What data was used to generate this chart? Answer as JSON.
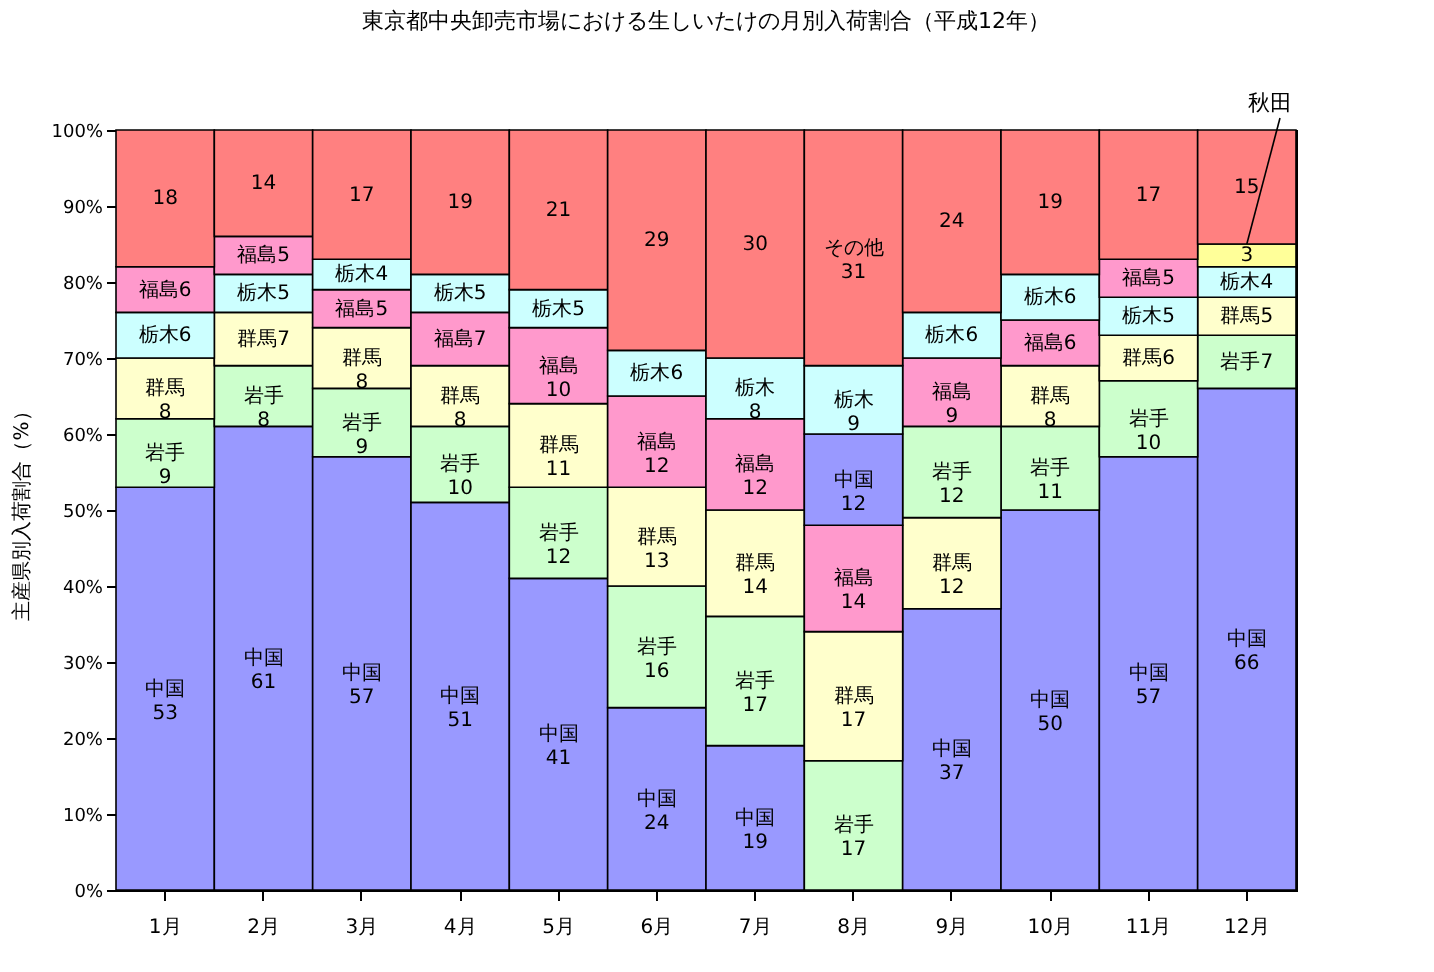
{
  "chart_data": {
    "type": "bar",
    "stacked": true,
    "title": "東京都中央卸売市場における生しいたけの月別入荷割合（平成12年）",
    "ylabel": "主産県別入荷割合（%）",
    "categories": [
      "1月",
      "2月",
      "3月",
      "4月",
      "5月",
      "6月",
      "7月",
      "8月",
      "9月",
      "10月",
      "11月",
      "12月"
    ],
    "ylim": [
      0,
      100
    ],
    "yticks": [
      {
        "value": 0,
        "label": "0%"
      },
      {
        "value": 10,
        "label": "10%"
      },
      {
        "value": 20,
        "label": "20%"
      },
      {
        "value": 30,
        "label": "30%"
      },
      {
        "value": 40,
        "label": "40%"
      },
      {
        "value": 50,
        "label": "50%"
      },
      {
        "value": 60,
        "label": "60%"
      },
      {
        "value": 70,
        "label": "70%"
      },
      {
        "value": 80,
        "label": "80%"
      },
      {
        "value": 90,
        "label": "90%"
      },
      {
        "value": 100,
        "label": "100%"
      }
    ],
    "series": [
      {
        "values": [
          53,
          61,
          57,
          51,
          41,
          24,
          19,
          17,
          37,
          50,
          57,
          66
        ],
        "colors": [
          "#9999ff",
          "#9999ff",
          "#9999ff",
          "#9999ff",
          "#9999ff",
          "#9999ff",
          "#9999ff",
          "#ccffcc",
          "#9999ff",
          "#9999ff",
          "#9999ff",
          "#9999ff"
        ],
        "value_labels": [
          "中国\n53",
          "中国\n61",
          "中国\n57",
          "中国\n51",
          "中国\n41",
          "中国\n24",
          "中国\n19",
          "岩手\n17",
          "中国\n37",
          "中国\n50",
          "中国\n57",
          "中国\n66"
        ]
      },
      {
        "values": [
          9,
          8,
          9,
          10,
          12,
          16,
          17,
          17,
          12,
          11,
          10,
          7
        ],
        "colors": [
          "#ccffcc",
          "#ccffcc",
          "#ccffcc",
          "#ccffcc",
          "#ccffcc",
          "#ccffcc",
          "#ccffcc",
          "#ffffcc",
          "#ffffcc",
          "#ccffcc",
          "#ccffcc",
          "#ccffcc"
        ],
        "value_labels": [
          "岩手\n9",
          "岩手\n8",
          "岩手\n9",
          "岩手\n10",
          "岩手\n12",
          "岩手\n16",
          "岩手\n17",
          "群馬\n17",
          "群馬\n12",
          "岩手\n11",
          "岩手\n10",
          "岩手7"
        ]
      },
      {
        "values": [
          8,
          7,
          8,
          8,
          11,
          13,
          14,
          14,
          12,
          8,
          6,
          5
        ],
        "colors": [
          "#ffffcc",
          "#ffffcc",
          "#ffffcc",
          "#ffffcc",
          "#ffffcc",
          "#ffffcc",
          "#ffffcc",
          "#ff99cc",
          "#ccffcc",
          "#ffffcc",
          "#ffffcc",
          "#ffffcc"
        ],
        "value_labels": [
          "群馬\n8",
          "群馬7",
          "群馬\n8",
          "群馬\n8",
          "群馬\n11",
          "群馬\n13",
          "群馬\n14",
          "福島\n14",
          "岩手\n12",
          "群馬\n8",
          "群馬6",
          "群馬5"
        ]
      },
      {
        "values": [
          6,
          5,
          5,
          7,
          10,
          12,
          12,
          12,
          9,
          6,
          5,
          4
        ],
        "colors": [
          "#ccffff",
          "#ccffff",
          "#ff99cc",
          "#ff99cc",
          "#ff99cc",
          "#ff99cc",
          "#ff99cc",
          "#9999ff",
          "#ff99cc",
          "#ff99cc",
          "#ccffff",
          "#ccffff"
        ],
        "value_labels": [
          "栃木6",
          "栃木5",
          "福島5",
          "福島7",
          "福島\n10",
          "福島\n12",
          "福島\n12",
          "中国\n12",
          "福島\n9",
          "福島6",
          "栃木5",
          "栃木4"
        ]
      },
      {
        "values": [
          6,
          5,
          4,
          5,
          5,
          6,
          8,
          9,
          6,
          6,
          5,
          3
        ],
        "colors": [
          "#ff99cc",
          "#ff99cc",
          "#ccffff",
          "#ccffff",
          "#ccffff",
          "#ccffff",
          "#ccffff",
          "#ccffff",
          "#ccffff",
          "#ccffff",
          "#ff99cc",
          "#ffff99"
        ],
        "value_labels": [
          "福島6",
          "福島5",
          "栃木4",
          "栃木5",
          "栃木5",
          "栃木6",
          "栃木\n8",
          "栃木\n9",
          "栃木6",
          "栃木6",
          "福島5",
          "3"
        ]
      },
      {
        "values": [
          18,
          14,
          17,
          19,
          21,
          29,
          30,
          31,
          24,
          19,
          17,
          15
        ],
        "colors": [
          "#ff8080",
          "#ff8080",
          "#ff8080",
          "#ff8080",
          "#ff8080",
          "#ff8080",
          "#ff8080",
          "#ff8080",
          "#ff8080",
          "#ff8080",
          "#ff8080",
          "#ff8080"
        ],
        "value_labels": [
          "18",
          "14",
          "17",
          "19",
          "21",
          "29",
          "30",
          "その他\n31",
          "24",
          "19",
          "17",
          "15"
        ]
      }
    ],
    "annotations": [
      {
        "text": "秋田",
        "x": "12月",
        "y": 85
      }
    ]
  }
}
